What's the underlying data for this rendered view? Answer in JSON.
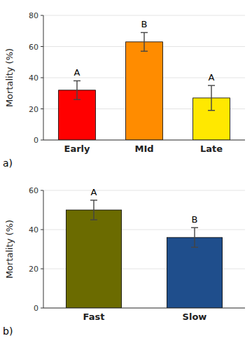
{
  "chart_data": [
    {
      "type": "bar",
      "categories": [
        "Early",
        "MId",
        "Late"
      ],
      "values": [
        32,
        63,
        27
      ],
      "errors": [
        6,
        6,
        8
      ],
      "colors": [
        "#FF0000",
        "#FF8C00",
        "#FFE800"
      ],
      "annotations": [
        "A",
        "B",
        "A"
      ],
      "ylabel": "Mortality (%)",
      "ylim": [
        0,
        80
      ],
      "yticks": [
        0,
        20,
        40,
        60,
        80
      ],
      "panel_label": "a)"
    },
    {
      "type": "bar",
      "categories": [
        "Fast",
        "Slow"
      ],
      "values": [
        50,
        36
      ],
      "errors": [
        5,
        5
      ],
      "colors": [
        "#6B6B00",
        "#1F4E8C"
      ],
      "annotations": [
        "A",
        "B"
      ],
      "ylabel": "Mortality (%)",
      "ylim": [
        0,
        60
      ],
      "yticks": [
        0,
        20,
        40,
        60
      ],
      "panel_label": "b)"
    }
  ]
}
